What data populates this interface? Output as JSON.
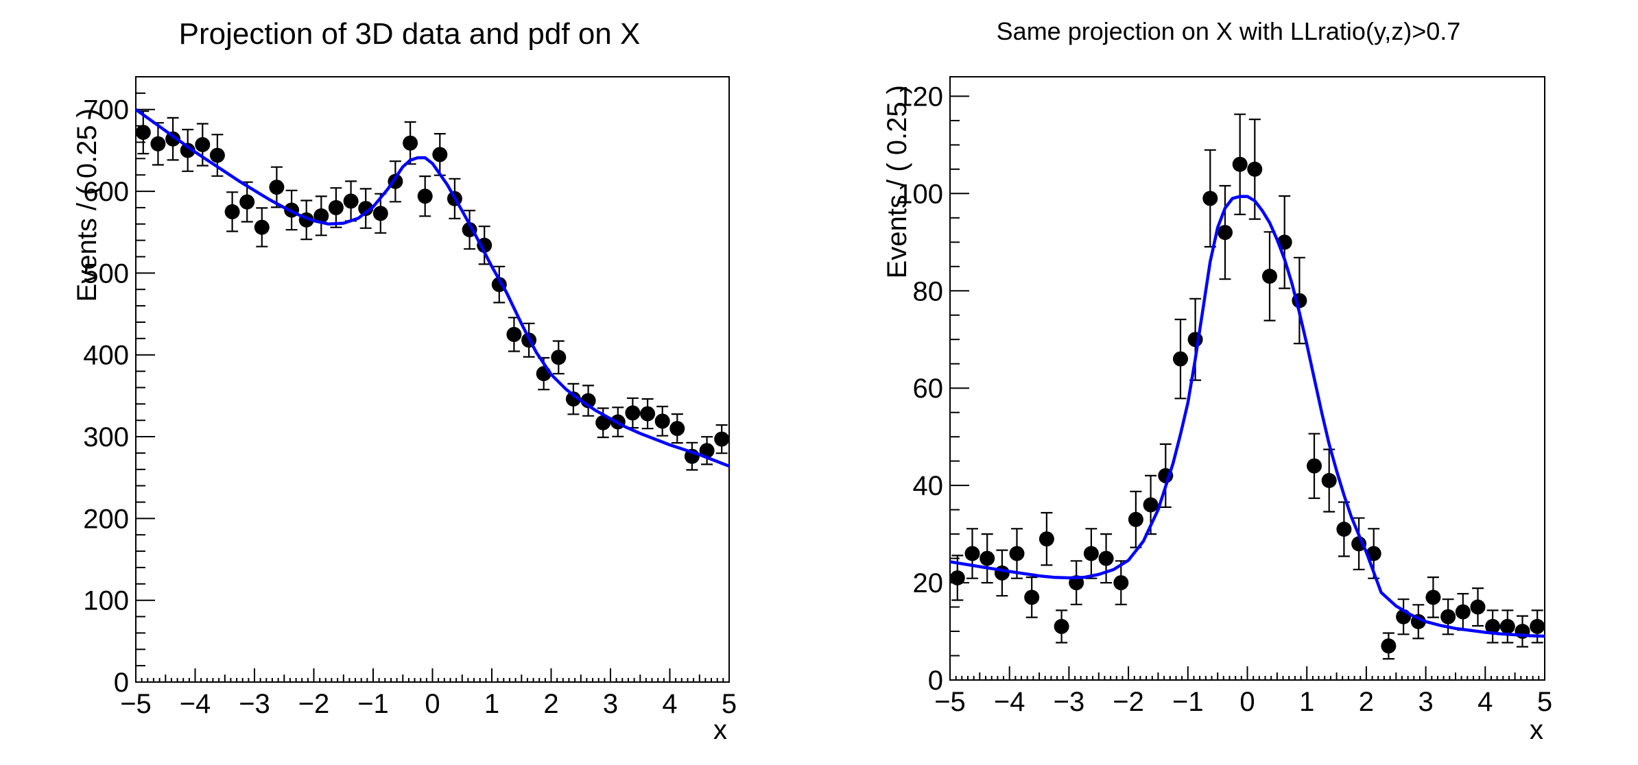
{
  "background_color": "#ffffff",
  "chart_data": [
    {
      "type": "scatter",
      "subtype": "binned-data-points-with-pdf-curve",
      "title": "Projection of 3D data and pdf on X",
      "xlabel": "x",
      "ylabel": "Events / ( 0.25 )",
      "xlim": [
        -5,
        5
      ],
      "ylim": [
        0,
        740
      ],
      "grid": false,
      "legend": "none",
      "x_ticks": [
        -5,
        -4,
        -3,
        -2,
        -1,
        0,
        1,
        2,
        3,
        4,
        5
      ],
      "x_tick_labels": [
        "−5",
        "−4",
        "−3",
        "−2",
        "−1",
        "0",
        "1",
        "2",
        "3",
        "4",
        "5"
      ],
      "y_ticks": [
        0,
        100,
        200,
        300,
        400,
        500,
        600,
        700
      ],
      "y_tick_labels": [
        "0",
        "100",
        "200",
        "300",
        "400",
        "500",
        "600",
        "700"
      ],
      "y_major_step": 100,
      "y_minor_step": 20,
      "x_minor_step": 0.1,
      "x_medium_step": 0.5,
      "bin_width": 0.25,
      "marker_color": "#000000",
      "curve_color": "#0000ff",
      "error_bars": "sqrt(N)",
      "bin_centers": [
        -4.875,
        -4.625,
        -4.375,
        -4.125,
        -3.875,
        -3.625,
        -3.375,
        -3.125,
        -2.875,
        -2.625,
        -2.375,
        -2.125,
        -1.875,
        -1.625,
        -1.375,
        -1.125,
        -0.875,
        -0.625,
        -0.375,
        -0.125,
        0.125,
        0.375,
        0.625,
        0.875,
        1.125,
        1.375,
        1.625,
        1.875,
        2.125,
        2.375,
        2.625,
        2.875,
        3.125,
        3.375,
        3.625,
        3.875,
        4.125,
        4.375,
        4.625,
        4.875
      ],
      "values": [
        672,
        658,
        664,
        650,
        657,
        644,
        575,
        587,
        556,
        605,
        577,
        565,
        570,
        580,
        588,
        579,
        573,
        612,
        659,
        594,
        645,
        591,
        553,
        534,
        486,
        425,
        418,
        377,
        397,
        346,
        344,
        317,
        318,
        329,
        328,
        319,
        310,
        276,
        283,
        297
      ],
      "curve": [
        [
          -5,
          700
        ],
        [
          -4.75,
          687
        ],
        [
          -4.5,
          674
        ],
        [
          -4.25,
          661
        ],
        [
          -4,
          648
        ],
        [
          -3.75,
          636
        ],
        [
          -3.5,
          624
        ],
        [
          -3.25,
          612
        ],
        [
          -3,
          601
        ],
        [
          -2.75,
          590
        ],
        [
          -2.5,
          580
        ],
        [
          -2.25,
          571
        ],
        [
          -2,
          564
        ],
        [
          -1.75,
          560
        ],
        [
          -1.5,
          561
        ],
        [
          -1.25,
          567
        ],
        [
          -1,
          581
        ],
        [
          -0.75,
          603
        ],
        [
          -0.5,
          630
        ],
        [
          -0.375,
          638
        ],
        [
          -0.25,
          641
        ],
        [
          -0.125,
          641
        ],
        [
          0,
          634
        ],
        [
          0.25,
          608
        ],
        [
          0.5,
          576
        ],
        [
          0.75,
          543
        ],
        [
          1,
          508
        ],
        [
          1.25,
          476
        ],
        [
          1.5,
          438
        ],
        [
          1.75,
          403
        ],
        [
          2,
          376
        ],
        [
          2.25,
          358
        ],
        [
          2.5,
          344
        ],
        [
          2.75,
          332
        ],
        [
          3,
          322
        ],
        [
          3.25,
          312
        ],
        [
          3.5,
          304
        ],
        [
          3.75,
          297
        ],
        [
          4,
          290
        ],
        [
          4.25,
          284
        ],
        [
          4.5,
          278
        ],
        [
          4.75,
          271
        ],
        [
          5,
          264
        ]
      ]
    },
    {
      "type": "scatter",
      "subtype": "binned-data-points-with-pdf-curve",
      "title": "Same projection on X with LLratio(y,z)>0.7",
      "xlabel": "x",
      "ylabel": "Events / ( 0.25 )",
      "xlim": [
        -5,
        5
      ],
      "ylim": [
        0,
        124
      ],
      "grid": false,
      "legend": "none",
      "x_ticks": [
        -5,
        -4,
        -3,
        -2,
        -1,
        0,
        1,
        2,
        3,
        4,
        5
      ],
      "x_tick_labels": [
        "−5",
        "−4",
        "−3",
        "−2",
        "−1",
        "0",
        "1",
        "2",
        "3",
        "4",
        "5"
      ],
      "y_ticks": [
        0,
        20,
        40,
        60,
        80,
        100,
        120
      ],
      "y_tick_labels": [
        "0",
        "20",
        "40",
        "60",
        "80",
        "100",
        "120"
      ],
      "y_major_step": 20,
      "y_minor_step": 5,
      "x_minor_step": 0.1,
      "x_medium_step": 0.5,
      "bin_width": 0.25,
      "marker_color": "#000000",
      "curve_color": "#0000ff",
      "error_bars": "sqrt(N)",
      "bin_centers": [
        -4.875,
        -4.625,
        -4.375,
        -4.125,
        -3.875,
        -3.625,
        -3.375,
        -3.125,
        -2.875,
        -2.625,
        -2.375,
        -2.125,
        -1.875,
        -1.625,
        -1.375,
        -1.125,
        -0.875,
        -0.625,
        -0.375,
        -0.125,
        0.125,
        0.375,
        0.625,
        0.875,
        1.125,
        1.375,
        1.625,
        1.875,
        2.125,
        2.375,
        2.625,
        2.875,
        3.125,
        3.375,
        3.625,
        3.875,
        4.125,
        4.375,
        4.625,
        4.875
      ],
      "values": [
        21,
        26,
        25,
        22,
        26,
        17,
        29,
        11,
        20,
        26,
        25,
        20,
        33,
        36,
        42,
        66,
        70,
        99,
        92,
        106,
        105,
        83,
        90,
        78,
        44,
        41,
        31,
        28,
        26,
        7,
        13,
        12,
        17,
        13,
        14,
        15,
        11,
        11,
        10,
        11
      ],
      "curve": [
        [
          -5,
          24.3
        ],
        [
          -4.5,
          23.3
        ],
        [
          -4,
          22.3
        ],
        [
          -3.5,
          21.4
        ],
        [
          -3.25,
          21.1
        ],
        [
          -3,
          21
        ],
        [
          -2.75,
          21.1
        ],
        [
          -2.5,
          21.7
        ],
        [
          -2.25,
          22.7
        ],
        [
          -2,
          24.6
        ],
        [
          -1.75,
          28.5
        ],
        [
          -1.5,
          35
        ],
        [
          -1.25,
          44.5
        ],
        [
          -1.125,
          50.5
        ],
        [
          -1,
          57
        ],
        [
          -0.875,
          66
        ],
        [
          -0.75,
          76
        ],
        [
          -0.625,
          86
        ],
        [
          -0.5,
          93
        ],
        [
          -0.375,
          97
        ],
        [
          -0.25,
          99
        ],
        [
          -0.125,
          99.4
        ],
        [
          0,
          99.4
        ],
        [
          0.125,
          98.5
        ],
        [
          0.25,
          96.5
        ],
        [
          0.375,
          94
        ],
        [
          0.5,
          90.5
        ],
        [
          0.625,
          86.5
        ],
        [
          0.75,
          81.5
        ],
        [
          0.875,
          75.5
        ],
        [
          1,
          69
        ],
        [
          1.125,
          62
        ],
        [
          1.25,
          55
        ],
        [
          1.375,
          48.5
        ],
        [
          1.5,
          43
        ],
        [
          1.625,
          38
        ],
        [
          1.75,
          33.5
        ],
        [
          1.875,
          29.8
        ],
        [
          2,
          26.3
        ],
        [
          2.25,
          18
        ],
        [
          2.5,
          15.2
        ],
        [
          2.75,
          13.4
        ],
        [
          3,
          12
        ],
        [
          3.25,
          11.2
        ],
        [
          3.5,
          10.6
        ],
        [
          3.75,
          10.2
        ],
        [
          4,
          9.8
        ],
        [
          4.25,
          9.5
        ],
        [
          4.5,
          9.3
        ],
        [
          4.75,
          9.1
        ],
        [
          5,
          9
        ]
      ]
    }
  ]
}
